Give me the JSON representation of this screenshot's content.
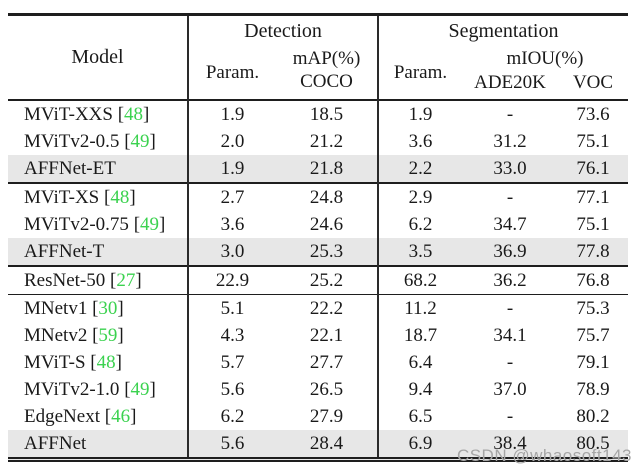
{
  "colors": {
    "citation_green": "#3bd24f",
    "highlight_row": "#e7e7e7",
    "rule": "#1e1e1e",
    "watermark": "#a6a6a6",
    "background": "#ffffff"
  },
  "watermark": {
    "text": "CSDN @whaosoft143"
  },
  "table": {
    "citation_open": "[",
    "citation_close": "]",
    "header": {
      "model": "Model",
      "detection": "Detection",
      "segmentation": "Segmentation",
      "detection_param": "Param.",
      "map_line1": "mAP(%)",
      "map_line2": "COCO",
      "segmentation_param": "Param.",
      "miou": "mIOU(%)",
      "ade20k": "ADE20K",
      "voc": "VOC"
    },
    "column_keys": [
      "det-param",
      "det-map-coco",
      "seg-param",
      "ade20k",
      "voc"
    ],
    "groups": [
      {
        "rows": [
          {
            "model": "MViT-XXS",
            "cite": "48",
            "highlight": false,
            "values": [
              "1.9",
              "18.5",
              "1.9",
              "-",
              "73.6"
            ]
          },
          {
            "model": "MViTv2-0.5",
            "cite": "49",
            "highlight": false,
            "values": [
              "2.0",
              "21.2",
              "3.6",
              "31.2",
              "75.1"
            ]
          },
          {
            "model": "AFFNet-ET",
            "cite": "",
            "highlight": true,
            "values": [
              "1.9",
              "21.8",
              "2.2",
              "33.0",
              "76.1"
            ]
          }
        ]
      },
      {
        "rows": [
          {
            "model": "MViT-XS",
            "cite": "48",
            "highlight": false,
            "values": [
              "2.7",
              "24.8",
              "2.9",
              "-",
              "77.1"
            ]
          },
          {
            "model": "MViTv2-0.75",
            "cite": "49",
            "highlight": false,
            "values": [
              "3.6",
              "24.6",
              "6.2",
              "34.7",
              "75.1"
            ]
          },
          {
            "model": "AFFNet-T",
            "cite": "",
            "highlight": true,
            "values": [
              "3.0",
              "25.3",
              "3.5",
              "36.9",
              "77.8"
            ]
          }
        ]
      },
      {
        "rows": [
          {
            "model": "ResNet-50",
            "cite": "27",
            "highlight": false,
            "values": [
              "22.9",
              "25.2",
              "68.2",
              "36.2",
              "76.8"
            ]
          }
        ]
      },
      {
        "rows": [
          {
            "model": "MNetv1",
            "cite": "30",
            "highlight": false,
            "values": [
              "5.1",
              "22.2",
              "11.2",
              "-",
              "75.3"
            ]
          },
          {
            "model": "MNetv2",
            "cite": "59",
            "highlight": false,
            "values": [
              "4.3",
              "22.1",
              "18.7",
              "34.1",
              "75.7"
            ]
          },
          {
            "model": "MViT-S",
            "cite": "48",
            "highlight": false,
            "values": [
              "5.7",
              "27.7",
              "6.4",
              "-",
              "79.1"
            ]
          },
          {
            "model": "MViTv2-1.0",
            "cite": "49",
            "highlight": false,
            "values": [
              "5.6",
              "26.5",
              "9.4",
              "37.0",
              "78.9"
            ]
          },
          {
            "model": "EdgeNext",
            "cite": "46",
            "highlight": false,
            "values": [
              "6.2",
              "27.9",
              "6.5",
              "-",
              "80.2"
            ]
          },
          {
            "model": "AFFNet",
            "cite": "",
            "highlight": true,
            "values": [
              "5.6",
              "28.4",
              "6.9",
              "38.4",
              "80.5"
            ]
          }
        ]
      }
    ]
  }
}
